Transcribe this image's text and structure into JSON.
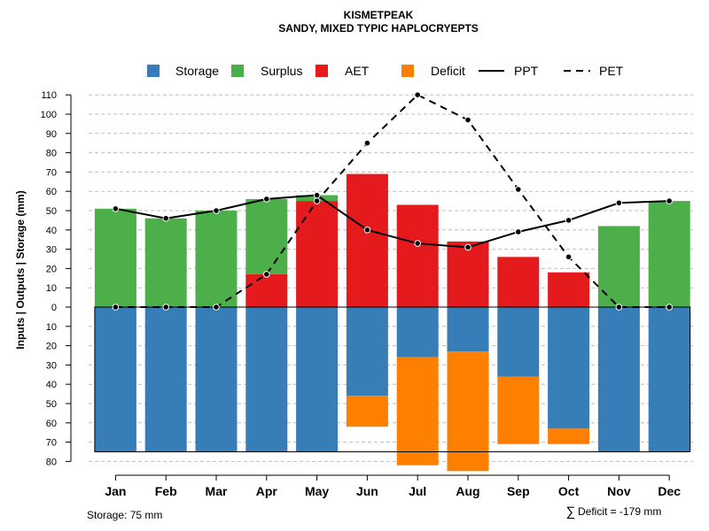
{
  "colors": {
    "storage": "#377EB8",
    "surplus": "#4DAF4A",
    "aet": "#E41A1C",
    "deficit": "#FF7F00",
    "line": "#000000",
    "grid": "#BEBEBE"
  },
  "chart_data": {
    "type": "bar",
    "title": "KISMETPEAK",
    "subtitle": "SANDY, MIXED TYPIC HAPLOCRYEPTS",
    "ylabel": "Inputs | Outputs | Storage    (mm)",
    "ylim": [
      -80,
      110
    ],
    "y_ticks_top": [
      0,
      10,
      20,
      30,
      40,
      50,
      60,
      70,
      80,
      90,
      100,
      110
    ],
    "y_ticks_bottom": [
      10,
      20,
      30,
      40,
      50,
      60,
      70,
      80
    ],
    "categories": [
      "Jan",
      "Feb",
      "Mar",
      "Apr",
      "May",
      "Jun",
      "Jul",
      "Aug",
      "Sep",
      "Oct",
      "Nov",
      "Dec"
    ],
    "legend": [
      {
        "name": "Storage",
        "kind": "box",
        "color_key": "storage"
      },
      {
        "name": "Surplus",
        "kind": "box",
        "color_key": "surplus"
      },
      {
        "name": "AET",
        "kind": "box",
        "color_key": "aet"
      },
      {
        "name": "Deficit",
        "kind": "box",
        "color_key": "deficit"
      },
      {
        "name": "PPT",
        "kind": "solid"
      },
      {
        "name": "PET",
        "kind": "dashed"
      }
    ],
    "series": [
      {
        "name": "AET",
        "values": [
          0,
          0,
          0,
          17,
          55,
          69,
          53,
          34,
          26,
          18,
          0,
          0
        ]
      },
      {
        "name": "Surplus",
        "values": [
          51,
          46,
          50,
          39,
          3,
          0,
          0,
          0,
          0,
          0,
          42,
          55
        ]
      },
      {
        "name": "Storage",
        "values": [
          75,
          75,
          75,
          75,
          75,
          46,
          26,
          23,
          36,
          63,
          75,
          75
        ]
      },
      {
        "name": "Deficit",
        "values": [
          0,
          0,
          0,
          0,
          0,
          16,
          56,
          62,
          35,
          8,
          0,
          0
        ]
      },
      {
        "name": "PPT",
        "values": [
          51,
          46,
          50,
          56,
          58,
          40,
          33,
          31,
          39,
          45,
          54,
          55
        ]
      },
      {
        "name": "PET",
        "values": [
          0,
          0,
          0,
          17,
          55,
          85,
          110,
          97,
          61,
          26,
          0,
          0
        ]
      }
    ],
    "storage_capacity": 75
  },
  "footer": {
    "storage_text": "Storage: 75 mm",
    "deficit_symbol": "∑",
    "deficit_text": "Deficit = -179 mm"
  }
}
